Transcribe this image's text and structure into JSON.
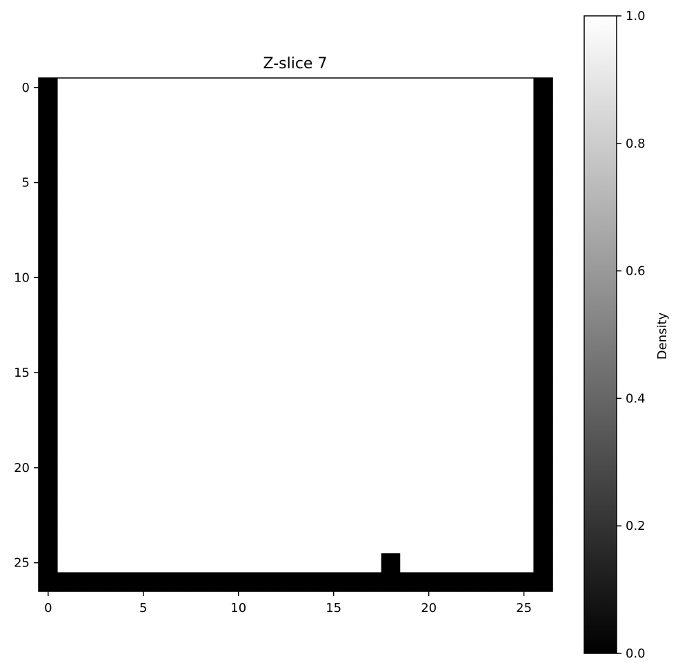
{
  "chart_data": {
    "type": "heatmap",
    "title": "Z-slice 7",
    "xlabel": "",
    "ylabel": "",
    "grid_size": [
      27,
      27
    ],
    "xlim": [
      -0.5,
      26.5
    ],
    "ylim": [
      26.5,
      -0.5
    ],
    "x_ticks": [
      0,
      5,
      10,
      15,
      20,
      25
    ],
    "y_ticks": [
      0,
      5,
      10,
      15,
      20,
      25
    ],
    "colormap": "gray",
    "value_range": [
      0.0,
      1.0
    ],
    "default_value": 1.0,
    "low_density_cells": {
      "value": 0.0,
      "columns_full": [
        0,
        26
      ],
      "rows_full": [
        26
      ],
      "cells": [
        [
          25,
          18
        ]
      ]
    },
    "colorbar": {
      "label": "Density",
      "ticks": [
        "0.0",
        "0.2",
        "0.4",
        "0.6",
        "0.8",
        "1.0"
      ],
      "tick_values": [
        0.0,
        0.2,
        0.4,
        0.6,
        0.8,
        1.0
      ],
      "low_color": "#000000",
      "high_color": "#ffffff"
    },
    "grid": false
  }
}
